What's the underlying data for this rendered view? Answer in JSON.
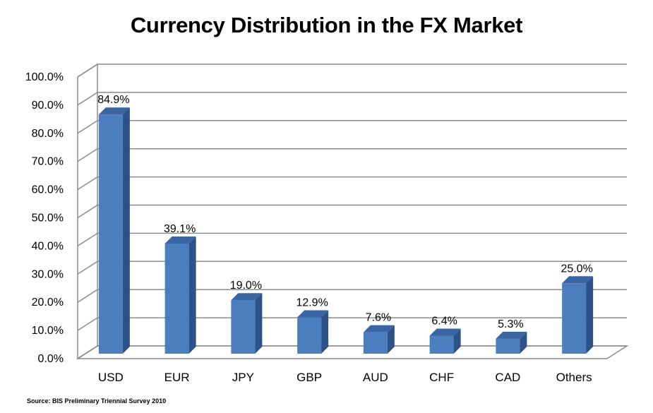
{
  "chart_data": {
    "type": "bar",
    "title": "Currency Distribution in the FX Market",
    "source": "Source: BIS Preliminary Triennial Survey  2010",
    "categories": [
      "USD",
      "EUR",
      "JPY",
      "GBP",
      "AUD",
      "CHF",
      "CAD",
      "Others"
    ],
    "values": [
      84.9,
      39.1,
      19.0,
      12.9,
      7.6,
      6.4,
      5.3,
      25.0
    ],
    "value_labels": [
      "84.9%",
      "39.1%",
      "19.0%",
      "12.9%",
      "7.6%",
      "6.4%",
      "5.3%",
      "25.0%"
    ],
    "ylim": [
      0,
      100
    ],
    "yticks": [
      "0.0%",
      "10.0%",
      "20.0%",
      "30.0%",
      "40.0%",
      "50.0%",
      "60.0%",
      "70.0%",
      "80.0%",
      "90.0%",
      "100.0%"
    ],
    "grid": true,
    "style": "3d-column",
    "colors": {
      "bar_front": "#4a7ebf",
      "bar_side": "#2c5287",
      "bar_top": "#3b65a0",
      "grid": "#8c8c8c"
    }
  }
}
